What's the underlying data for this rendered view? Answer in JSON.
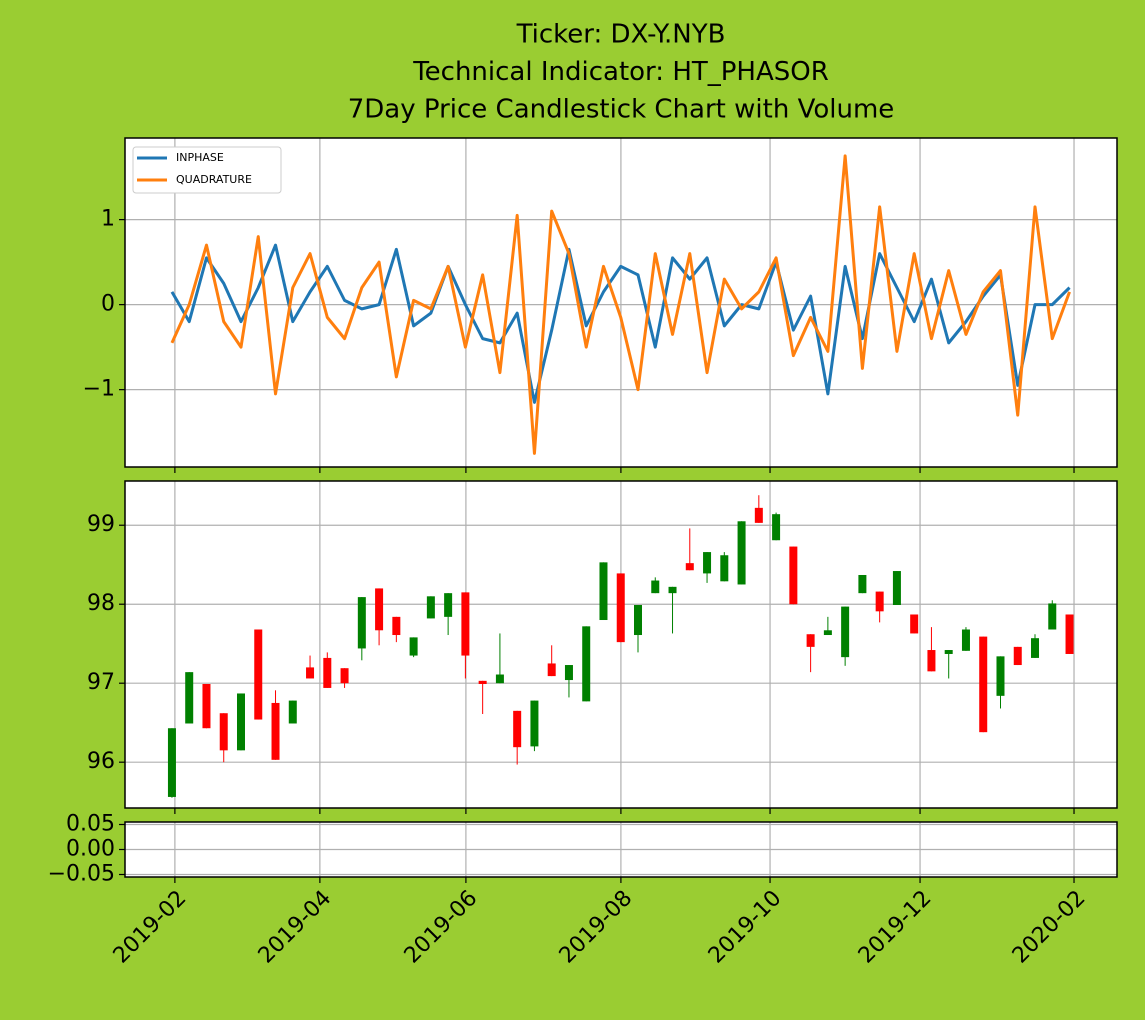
{
  "chart_data": [
    {
      "type": "line",
      "title": [
        "Ticker: DX-Y.NYB",
        "Technical Indicator: HT_PHASOR",
        "7Day Price Candlestick Chart with Volume"
      ],
      "x": [
        0,
        1,
        2,
        3,
        4,
        5,
        6,
        7,
        8,
        9,
        10,
        11,
        12,
        13,
        14,
        15,
        16,
        17,
        18,
        19,
        20,
        21,
        22,
        23,
        24,
        25,
        26,
        27,
        28,
        29,
        30,
        31,
        32,
        33,
        34,
        35,
        36,
        37,
        38,
        39,
        40,
        41,
        42,
        43,
        44,
        45,
        46,
        47,
        48,
        49,
        50,
        51,
        52
      ],
      "series": [
        {
          "name": "INPHASE",
          "color": "#1f77b4",
          "values": [
            0.15,
            -0.2,
            0.55,
            0.25,
            -0.2,
            0.2,
            0.7,
            -0.2,
            0.15,
            0.45,
            0.05,
            -0.05,
            0.0,
            0.65,
            -0.25,
            -0.1,
            0.45,
            0.0,
            -0.4,
            -0.45,
            -0.1,
            -1.15,
            -0.3,
            0.65,
            -0.25,
            0.15,
            0.45,
            0.35,
            -0.5,
            0.55,
            0.3,
            0.55,
            -0.25,
            0.0,
            -0.05,
            0.5,
            -0.3,
            0.1,
            -1.05,
            0.45,
            -0.4,
            0.6,
            0.2,
            -0.2,
            0.3,
            -0.45,
            -0.2,
            0.1,
            0.35,
            -0.95,
            0.0,
            0.0,
            0.2
          ]
        },
        {
          "name": "QUADRATURE",
          "color": "#ff7f0e",
          "values": [
            -0.45,
            0.0,
            0.7,
            -0.2,
            -0.5,
            0.8,
            -1.05,
            0.2,
            0.6,
            -0.15,
            -0.4,
            0.2,
            0.5,
            -0.85,
            0.05,
            -0.05,
            0.45,
            -0.5,
            0.35,
            -0.8,
            1.05,
            -1.75,
            1.1,
            0.6,
            -0.5,
            0.45,
            -0.15,
            -1.0,
            0.6,
            -0.35,
            0.6,
            -0.8,
            0.3,
            -0.05,
            0.15,
            0.55,
            -0.6,
            -0.15,
            -0.55,
            1.75,
            -0.75,
            1.15,
            -0.55,
            0.6,
            -0.4,
            0.4,
            -0.35,
            0.15,
            0.4,
            -1.3,
            1.15,
            -0.4,
            0.15
          ]
        }
      ],
      "ylim": [
        -1.91,
        1.96
      ],
      "yticks": [
        {
          "value": -1,
          "label": "−1"
        },
        0,
        1
      ],
      "grid": true,
      "legend": "upper left"
    },
    {
      "type": "candlestick",
      "x": [
        0,
        1,
        2,
        3,
        4,
        5,
        6,
        7,
        8,
        9,
        10,
        11,
        12,
        13,
        14,
        15,
        16,
        17,
        18,
        19,
        20,
        21,
        22,
        23,
        24,
        25,
        26,
        27,
        28,
        29,
        30,
        31,
        32,
        33,
        34,
        35,
        36,
        37,
        38,
        39,
        40,
        41,
        42,
        43,
        44,
        45,
        46,
        47,
        48,
        49,
        50,
        51,
        52
      ],
      "open": [
        95.56,
        96.49,
        96.99,
        96.62,
        96.15,
        97.68,
        96.75,
        96.49,
        97.2,
        97.32,
        97.19,
        97.44,
        98.2,
        97.84,
        97.35,
        97.82,
        97.84,
        98.15,
        97.03,
        97.0,
        96.65,
        96.2,
        97.25,
        97.04,
        96.77,
        97.8,
        98.39,
        97.61,
        98.14,
        98.14,
        98.52,
        98.39,
        98.29,
        98.25,
        99.22,
        98.81,
        98.73,
        97.62,
        97.61,
        97.33,
        98.14,
        98.16,
        97.99,
        97.87,
        97.42,
        97.37,
        97.41,
        97.59,
        96.84,
        97.46,
        97.32,
        97.68,
        97.87
      ],
      "high": [
        96.43,
        97.14,
        96.99,
        96.62,
        96.87,
        97.68,
        96.91,
        96.78,
        97.35,
        97.39,
        97.19,
        98.09,
        98.2,
        97.84,
        97.58,
        98.1,
        98.14,
        98.15,
        97.03,
        97.63,
        96.65,
        96.78,
        97.48,
        97.23,
        97.72,
        98.53,
        98.39,
        97.99,
        98.34,
        98.22,
        98.96,
        98.66,
        98.66,
        99.05,
        99.38,
        99.16,
        98.73,
        97.62,
        97.84,
        97.97,
        98.37,
        98.16,
        98.42,
        97.87,
        97.71,
        97.42,
        97.71,
        97.59,
        97.34,
        97.46,
        97.62,
        98.05,
        97.87
      ],
      "low": [
        95.55,
        96.49,
        96.43,
        96.0,
        96.15,
        96.54,
        96.03,
        96.49,
        97.06,
        96.94,
        96.94,
        97.29,
        97.48,
        97.52,
        97.33,
        97.82,
        97.61,
        97.06,
        96.61,
        97.0,
        95.97,
        96.14,
        97.09,
        96.82,
        96.77,
        97.8,
        97.52,
        97.39,
        98.14,
        97.63,
        98.43,
        98.27,
        98.29,
        98.25,
        99.03,
        98.81,
        98.0,
        97.14,
        97.61,
        97.22,
        98.14,
        97.77,
        97.99,
        97.63,
        97.15,
        97.06,
        97.41,
        96.38,
        96.68,
        97.23,
        97.32,
        97.68,
        97.37
      ],
      "close": [
        96.43,
        97.14,
        96.43,
        96.15,
        96.87,
        96.54,
        96.03,
        96.78,
        97.06,
        96.94,
        97.0,
        98.09,
        97.67,
        97.61,
        97.58,
        98.1,
        98.14,
        97.35,
        96.99,
        97.11,
        96.19,
        96.78,
        97.09,
        97.23,
        97.72,
        98.53,
        97.52,
        97.99,
        98.3,
        98.22,
        98.43,
        98.66,
        98.62,
        99.05,
        99.03,
        99.14,
        98.0,
        97.46,
        97.67,
        97.97,
        98.37,
        97.91,
        98.42,
        97.63,
        97.15,
        97.42,
        97.68,
        96.38,
        97.34,
        97.23,
        97.57,
        98.01,
        97.37
      ],
      "up_color": "green",
      "down_color": "red",
      "ylim": [
        95.42,
        99.56
      ],
      "yticks": [
        96,
        97,
        98,
        99
      ],
      "grid": true
    },
    {
      "type": "bar",
      "ylim": [
        -0.055,
        0.055
      ],
      "yticks": [
        {
          "value": -0.05,
          "label": "−0.05"
        },
        {
          "value": 0,
          "label": "0.00"
        },
        0.05
      ],
      "xlim": [
        -2.72,
        54.75
      ],
      "xticks": [
        {
          "value": 0.17,
          "label": "2019-02"
        },
        {
          "value": 8.57,
          "label": "2019-04"
        },
        {
          "value": 17.03,
          "label": "2019-06"
        },
        {
          "value": 26.01,
          "label": "2019-08"
        },
        {
          "value": 34.65,
          "label": "2019-10"
        },
        {
          "value": 43.34,
          "label": "2019-12"
        },
        {
          "value": 52.26,
          "label": "2020-02"
        }
      ],
      "grid": true
    }
  ]
}
